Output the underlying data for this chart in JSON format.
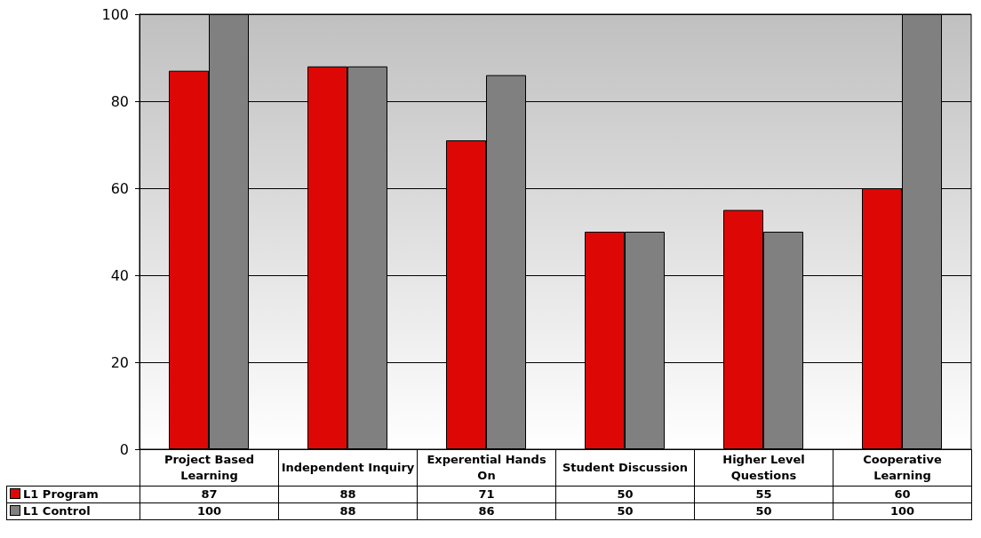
{
  "chart_data": {
    "type": "bar",
    "categories": [
      "Project Based Learning",
      "Independent Inquiry",
      "Experential Hands On",
      "Student Discussion",
      "Higher Level Questions",
      "Cooperative Learning"
    ],
    "series": [
      {
        "name": "L1 Program",
        "color": "#dd0806",
        "values": [
          87,
          88,
          71,
          50,
          55,
          60
        ]
      },
      {
        "name": "L1 Control",
        "color": "#808080",
        "values": [
          100,
          88,
          86,
          50,
          50,
          100
        ]
      }
    ],
    "ylim": [
      0,
      100
    ],
    "yticks": [
      0,
      20,
      40,
      60,
      80,
      100
    ],
    "grid": "y",
    "legend": "bottom left",
    "data_labels": true
  }
}
